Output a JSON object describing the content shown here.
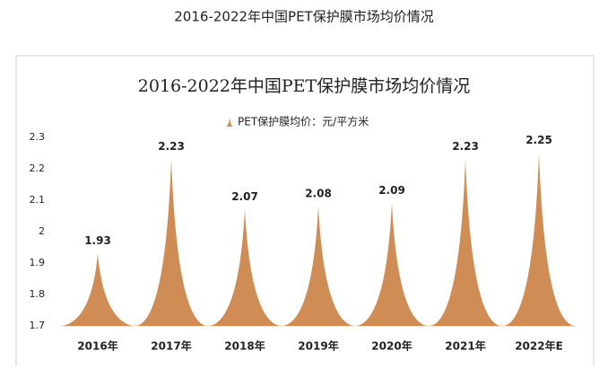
{
  "page_title": "2016-2022年中国PET保护膜市场均价情况",
  "chart_data": {
    "type": "spike",
    "title": "2016-2022年中国PET保护膜市场均价情况",
    "categories": [
      "2016年",
      "2017年",
      "2018年",
      "2019年",
      "2020年",
      "2021年",
      "2022年E"
    ],
    "series": [
      {
        "name": "PET保护膜均价：元/平方米",
        "color": "#d08c55",
        "values": [
          1.93,
          2.23,
          2.07,
          2.08,
          2.09,
          2.23,
          2.25
        ]
      }
    ],
    "ylim": [
      1.7,
      2.3
    ],
    "yticks": [
      1.7,
      1.8,
      1.9,
      2,
      2.1,
      2.2,
      2.3
    ],
    "grid": false,
    "legend": "top"
  }
}
